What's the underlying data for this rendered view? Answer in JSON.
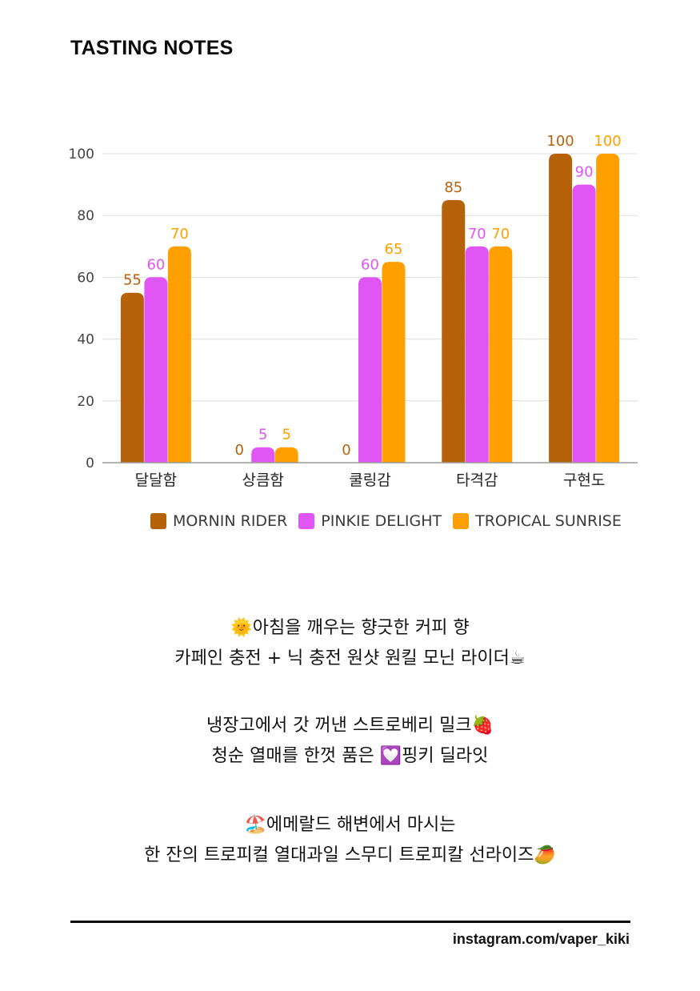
{
  "page": {
    "title": "TASTING NOTES",
    "handle": "instagram.com/vaper_kiki"
  },
  "colors": {
    "mornin": "#b5620a",
    "pinkie": "#e055f3",
    "tropical": "#ffa000"
  },
  "chart_data": {
    "type": "bar",
    "title": "",
    "xlabel": "",
    "ylabel": "",
    "ylim": [
      0,
      100
    ],
    "yticks": [
      "0",
      "20",
      "40",
      "60",
      "80",
      "100"
    ],
    "grid": true,
    "legend_position": "bottom",
    "categories": [
      "달달함",
      "상큼함",
      "쿨링감",
      "타격감",
      "구현도"
    ],
    "series": [
      {
        "name": "MORNIN RIDER",
        "color": "#b5620a",
        "values": [
          55,
          0,
          0,
          85,
          100
        ]
      },
      {
        "name": "PINKIE DELIGHT",
        "color": "#e055f3",
        "values": [
          60,
          5,
          60,
          70,
          90
        ]
      },
      {
        "name": "TROPICAL SUNRISE",
        "color": "#ffa000",
        "values": [
          70,
          5,
          65,
          70,
          100
        ]
      }
    ]
  },
  "descriptions": [
    {
      "icon": "sun-with-face-icon",
      "line1": {
        "emoji": "🌞",
        "text": "아침을 깨우는 향긋한 커피 향"
      },
      "line2": {
        "text": "카페인 충전 + 닉 충전 원샷 원킬 모닌 라이더",
        "emoji": "☕"
      }
    },
    {
      "icon": "strawberry-icon",
      "line1": {
        "text": "냉장고에서 갓 꺼낸 스트로베리 밀크",
        "emoji": "🍓"
      },
      "line2": {
        "pre": "청순 열매를 한껏 품은 ",
        "emoji": "💟",
        "post": "핑키 딜라잇"
      }
    },
    {
      "icon": "beach-umbrella-icon",
      "line1": {
        "emoji": "🏖️",
        "text": "에메랄드 해변에서 마시는"
      },
      "line2": {
        "text": "한 잔의 트로피컬 열대과일 스무디 트로피칼 선라이즈",
        "emoji": "🥭"
      }
    }
  ]
}
